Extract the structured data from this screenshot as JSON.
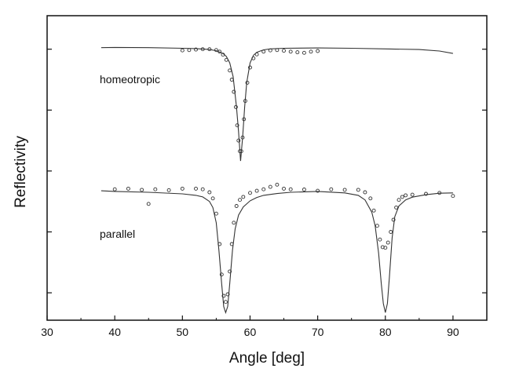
{
  "chart_data": {
    "type": "scatter",
    "title": "",
    "xlabel": "Angle [deg]",
    "ylabel": "Reflectivity",
    "xlim": [
      30,
      95
    ],
    "ylim": [
      0,
      1
    ],
    "xticks": [
      30,
      40,
      50,
      60,
      70,
      80,
      90
    ],
    "yticks": [
      0.09,
      0.29,
      0.49,
      0.69,
      0.89
    ],
    "show_ytick_labels": false,
    "grid": false,
    "legend": "none",
    "annotations": [
      {
        "text": "homeotropic",
        "x": 37.5,
        "y": 0.8
      },
      {
        "text": "parallel",
        "x": 37.5,
        "y": 0.28
      }
    ],
    "series": [
      {
        "mode": "markers",
        "color": "#333333",
        "x": [
          50,
          51,
          52,
          53,
          54,
          55,
          55.5,
          56,
          56.5,
          57,
          57.3,
          57.6,
          57.9,
          58.1,
          58.3,
          58.5,
          58.7,
          58.9,
          59.1,
          59.3,
          59.6,
          60,
          60.5,
          61,
          62,
          63,
          64,
          65,
          66,
          67,
          68,
          69,
          70
        ],
        "y": [
          0.886,
          0.887,
          0.889,
          0.89,
          0.89,
          0.887,
          0.882,
          0.872,
          0.855,
          0.82,
          0.79,
          0.75,
          0.7,
          0.64,
          0.59,
          0.555,
          0.555,
          0.6,
          0.66,
          0.72,
          0.78,
          0.83,
          0.86,
          0.873,
          0.882,
          0.886,
          0.887,
          0.885,
          0.882,
          0.88,
          0.878,
          0.882,
          0.884
        ]
      },
      {
        "mode": "line",
        "color": "#333333",
        "x": [
          38,
          40,
          45,
          50,
          52,
          54,
          55,
          56,
          56.5,
          57,
          57.5,
          58,
          58.3,
          58.6,
          58.9,
          59.2,
          59.5,
          60,
          60.5,
          61,
          62,
          63,
          65,
          70,
          75,
          80,
          85,
          88,
          90
        ],
        "y": [
          0.895,
          0.896,
          0.895,
          0.893,
          0.892,
          0.889,
          0.885,
          0.876,
          0.866,
          0.845,
          0.8,
          0.7,
          0.62,
          0.523,
          0.6,
          0.7,
          0.78,
          0.845,
          0.87,
          0.88,
          0.888,
          0.891,
          0.893,
          0.894,
          0.893,
          0.891,
          0.889,
          0.884,
          0.876
        ]
      },
      {
        "mode": "markers",
        "color": "#333333",
        "x": [
          40,
          42,
          44,
          45,
          46,
          48,
          50,
          52,
          53,
          54,
          54.5,
          55,
          55.5,
          55.8,
          56.1,
          56.4,
          56.7,
          57,
          57.3,
          57.6,
          58,
          58.5,
          59,
          60,
          61,
          62,
          63,
          64,
          65,
          66,
          68,
          70,
          72,
          74,
          76,
          77,
          77.8,
          78.3,
          78.8,
          79.2,
          79.6,
          80,
          80.4,
          80.8,
          81.2,
          81.6,
          82,
          82.5,
          83,
          84,
          86,
          88,
          90
        ],
        "y": [
          0.43,
          0.432,
          0.428,
          0.382,
          0.43,
          0.427,
          0.432,
          0.432,
          0.43,
          0.42,
          0.4,
          0.35,
          0.25,
          0.15,
          0.08,
          0.06,
          0.085,
          0.16,
          0.25,
          0.32,
          0.375,
          0.395,
          0.405,
          0.418,
          0.425,
          0.43,
          0.438,
          0.445,
          0.432,
          0.43,
          0.429,
          0.425,
          0.43,
          0.428,
          0.428,
          0.42,
          0.4,
          0.36,
          0.31,
          0.265,
          0.24,
          0.238,
          0.255,
          0.29,
          0.33,
          0.37,
          0.395,
          0.405,
          0.41,
          0.412,
          0.415,
          0.418,
          0.408
        ]
      },
      {
        "mode": "line",
        "color": "#333333",
        "x": [
          38,
          40,
          45,
          50,
          52,
          53,
          54,
          54.5,
          55,
          55.4,
          55.8,
          56.1,
          56.4,
          56.7,
          57,
          57.4,
          57.8,
          58.3,
          59,
          60,
          61,
          62,
          64,
          66,
          70,
          74,
          76,
          77,
          78,
          78.5,
          79,
          79.4,
          79.7,
          80,
          80.3,
          80.6,
          81,
          81.4,
          82,
          83,
          84,
          86,
          88,
          90
        ],
        "y": [
          0.425,
          0.423,
          0.42,
          0.415,
          0.41,
          0.405,
          0.39,
          0.37,
          0.32,
          0.23,
          0.12,
          0.045,
          0.025,
          0.045,
          0.12,
          0.23,
          0.3,
          0.345,
          0.372,
          0.392,
          0.403,
          0.41,
          0.416,
          0.42,
          0.423,
          0.418,
          0.41,
          0.395,
          0.355,
          0.31,
          0.22,
          0.12,
          0.055,
          0.025,
          0.055,
          0.14,
          0.27,
          0.34,
          0.375,
          0.395,
          0.404,
          0.412,
          0.417,
          0.418
        ]
      }
    ]
  }
}
